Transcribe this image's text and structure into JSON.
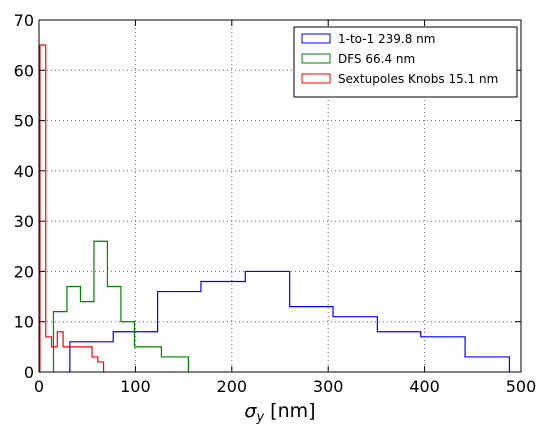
{
  "chart_data": {
    "type": "histogram-step",
    "xlabel": "[nm]",
    "xlabel_symbol": "σ",
    "xlabel_subscript": "y",
    "xlim": [
      0,
      500
    ],
    "ylim": [
      0,
      70
    ],
    "xticks": [
      0,
      100,
      200,
      300,
      400,
      500
    ],
    "yticks": [
      0,
      10,
      20,
      30,
      40,
      50,
      60,
      70
    ],
    "grid": true,
    "legend_position": "top-right",
    "series": [
      {
        "name": "1-to-1 239.8 nm",
        "color": "#0000ff",
        "edges": [
          32,
          77,
          123,
          168,
          214,
          260,
          305,
          351,
          396,
          442,
          488
        ],
        "counts": [
          6,
          8,
          16,
          18,
          20,
          13,
          11,
          8,
          7,
          3
        ]
      },
      {
        "name": "DFS 66.4 nm",
        "color": "#008000",
        "edges": [
          15,
          29,
          43,
          57,
          71,
          85,
          99,
          127,
          155
        ],
        "counts": [
          12,
          17,
          14,
          26,
          17,
          10,
          5,
          3
        ]
      },
      {
        "name": "Sextupoles Knobs 15.1 nm",
        "color": "#ff0000",
        "edges": [
          1,
          7,
          13,
          19,
          25,
          31,
          37,
          43,
          49,
          55,
          61,
          67
        ],
        "counts": [
          65,
          7,
          5,
          8,
          5,
          5,
          5,
          5,
          5,
          3,
          2
        ]
      }
    ]
  }
}
